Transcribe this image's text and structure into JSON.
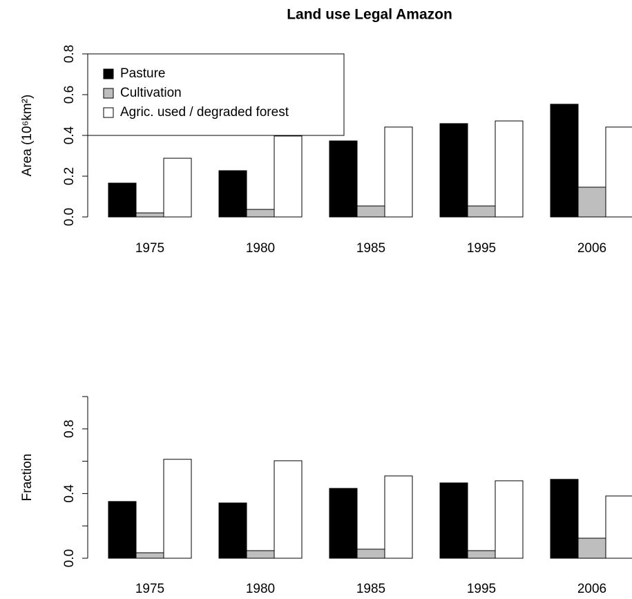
{
  "chart_data": [
    {
      "type": "bar",
      "title": "Land use Legal Amazon",
      "ylabel": "Area (10⁶km²)",
      "categories": [
        "1975",
        "1980",
        "1985",
        "1995",
        "2006"
      ],
      "series": [
        {
          "name": "Pasture",
          "color": "#000000",
          "values": [
            0.166,
            0.227,
            0.373,
            0.458,
            0.553
          ]
        },
        {
          "name": "Cultivation",
          "color": "#bebebe",
          "values": [
            0.02,
            0.037,
            0.054,
            0.054,
            0.146
          ]
        },
        {
          "name": "Agric. used / degraded forest",
          "color": "#ffffff",
          "values": [
            0.288,
            0.397,
            0.441,
            0.471,
            0.441
          ]
        }
      ],
      "ylim": [
        0,
        0.8
      ],
      "yticks": [
        {
          "value": 0,
          "label": "0.0"
        },
        0.2,
        0.4,
        0.6,
        0.8
      ],
      "legend": "topleft"
    },
    {
      "type": "bar",
      "ylabel": "Fraction",
      "categories": [
        "1975",
        "1980",
        "1985",
        "1995",
        "2006"
      ],
      "series": [
        {
          "color": "#000000",
          "values": [
            0.351,
            0.342,
            0.432,
            0.466,
            0.488
          ]
        },
        {
          "color": "#bebebe",
          "values": [
            0.034,
            0.047,
            0.056,
            0.047,
            0.124
          ]
        },
        {
          "color": "#ffffff",
          "values": [
            0.612,
            0.603,
            0.509,
            0.479,
            0.385
          ]
        }
      ],
      "ylim": [
        0,
        1
      ],
      "yticks": [
        {
          "value": 0,
          "label": "0.0"
        },
        {
          "value": 0.2,
          "label": null
        },
        0.4,
        {
          "value": 0.6,
          "label": null
        },
        0.8,
        {
          "value": 1,
          "label": null
        }
      ]
    }
  ]
}
